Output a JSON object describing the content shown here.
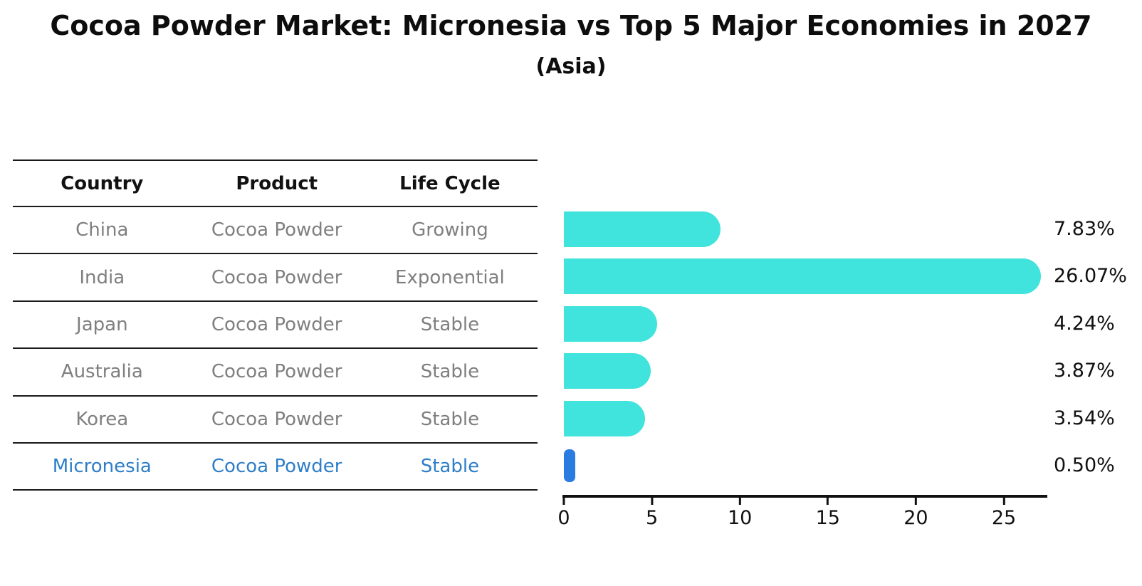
{
  "title": "Cocoa Powder Market: Micronesia vs Top 5 Major Economies in 2027",
  "subtitle": "(Asia)",
  "table": {
    "headers": [
      "Country",
      "Product",
      "Life Cycle"
    ],
    "rows": [
      {
        "country": "China",
        "product": "Cocoa Powder",
        "life_cycle": "Growing"
      },
      {
        "country": "India",
        "product": "Cocoa Powder",
        "life_cycle": "Exponential"
      },
      {
        "country": "Japan",
        "product": "Cocoa Powder",
        "life_cycle": "Stable"
      },
      {
        "country": "Australia",
        "product": "Cocoa Powder",
        "life_cycle": "Stable"
      },
      {
        "country": "Korea",
        "product": "Cocoa Powder",
        "life_cycle": "Stable"
      },
      {
        "country": "Micronesia",
        "product": "Cocoa Powder",
        "life_cycle": "Stable"
      }
    ],
    "highlighted_country": "Micronesia"
  },
  "chart_data": {
    "type": "bar",
    "orientation": "horizontal",
    "title": "Cocoa Powder Market: Micronesia vs Top 5 Major Economies in 2027",
    "subtitle": "(Asia)",
    "categories": [
      "China",
      "India",
      "Japan",
      "Australia",
      "Korea",
      "Micronesia"
    ],
    "values": [
      7.83,
      26.07,
      4.24,
      3.87,
      3.54,
      0.5
    ],
    "value_labels": [
      "7.83%",
      "26.07%",
      "4.24%",
      "3.87%",
      "3.54%",
      "0.50%"
    ],
    "x_ticks": [
      "0",
      "5",
      "10",
      "15",
      "20",
      "25"
    ],
    "xlim": [
      0,
      27.5
    ],
    "grid": false,
    "highlight_index": 5,
    "bar_color": "#40E4DC",
    "highlight_color": "#2B7CE0"
  },
  "colors": {
    "bar_cyan": "#40E4DC",
    "highlight_blue": "#2B7CE0",
    "highlight_text_blue": "#2E7EC8",
    "row_text_gray": "#7f7f7f",
    "text_black": "#111111",
    "background": "#ffffff"
  }
}
